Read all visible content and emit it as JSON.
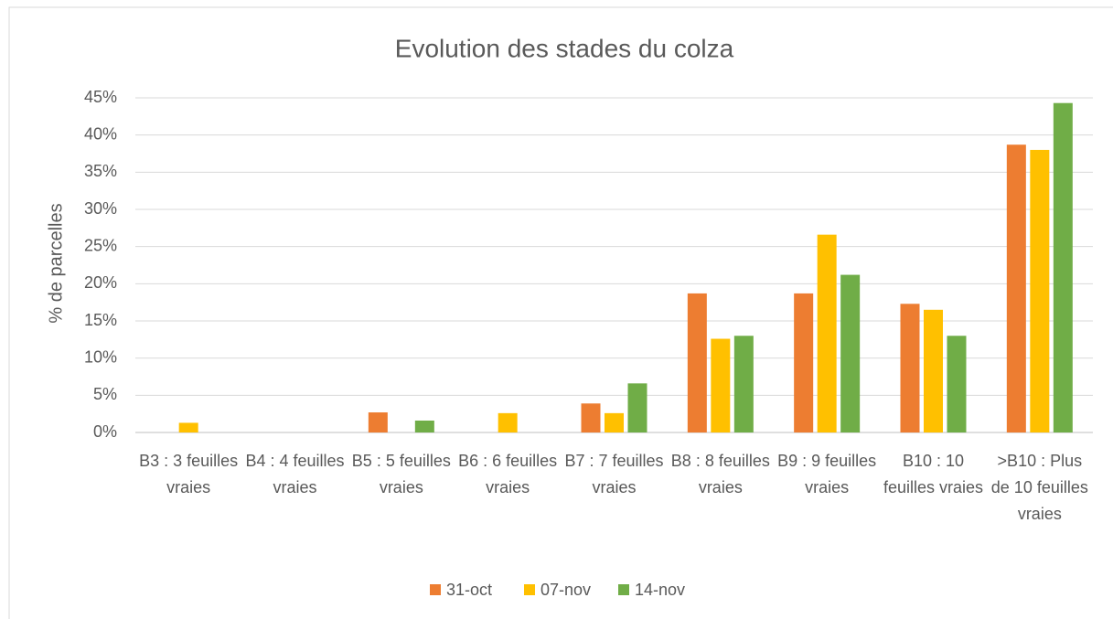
{
  "chart_data": {
    "type": "bar",
    "title": "Evolution des stades du colza",
    "y_label": "% de parcelles",
    "categories": [
      "B3 : 3 feuilles vraies",
      "B4 : 4 feuilles vraies",
      "B5 : 5 feuilles vraies",
      "B6 : 6 feuilles vraies",
      "B7 : 7 feuilles vraies",
      "B8 : 8 feuilles vraies",
      "B9 : 9 feuilles vraies",
      "B10 : 10 feuilles vraies",
      ">B10 : Plus de 10 feuilles vraies"
    ],
    "series": [
      {
        "name": "31-oct",
        "color": "#ed7d31",
        "values": [
          0,
          0,
          2.7,
          0,
          3.9,
          18.7,
          18.7,
          17.3,
          38.7
        ]
      },
      {
        "name": "07-nov",
        "color": "#ffc000",
        "values": [
          1.3,
          0,
          0,
          2.6,
          2.6,
          12.6,
          26.6,
          16.5,
          38.0
        ]
      },
      {
        "name": "14-nov",
        "color": "#70ad47",
        "values": [
          0,
          0,
          1.6,
          0,
          6.6,
          13.0,
          21.2,
          13.0,
          44.3
        ]
      }
    ],
    "ylim": [
      0,
      45
    ],
    "yticks": [
      {
        "value": 0,
        "label": "0%"
      },
      {
        "value": 5,
        "label": "5%"
      },
      {
        "value": 10,
        "label": "10%"
      },
      {
        "value": 15,
        "label": "15%"
      },
      {
        "value": 20,
        "label": "20%"
      },
      {
        "value": 25,
        "label": "25%"
      },
      {
        "value": 30,
        "label": "30%"
      },
      {
        "value": 35,
        "label": "35%"
      },
      {
        "value": 40,
        "label": "40%"
      },
      {
        "value": 45,
        "label": "45%"
      }
    ],
    "grid": true,
    "legend": "bottom"
  }
}
